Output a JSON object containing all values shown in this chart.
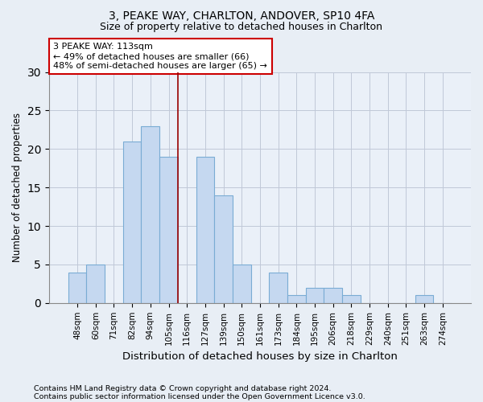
{
  "title1": "3, PEAKE WAY, CHARLTON, ANDOVER, SP10 4FA",
  "title2": "Size of property relative to detached houses in Charlton",
  "xlabel": "Distribution of detached houses by size in Charlton",
  "ylabel": "Number of detached properties",
  "categories": [
    "48sqm",
    "60sqm",
    "71sqm",
    "82sqm",
    "94sqm",
    "105sqm",
    "116sqm",
    "127sqm",
    "139sqm",
    "150sqm",
    "161sqm",
    "173sqm",
    "184sqm",
    "195sqm",
    "206sqm",
    "218sqm",
    "229sqm",
    "240sqm",
    "251sqm",
    "263sqm",
    "274sqm"
  ],
  "values": [
    4,
    5,
    0,
    21,
    23,
    19,
    0,
    19,
    14,
    5,
    0,
    4,
    1,
    2,
    2,
    1,
    0,
    0,
    0,
    1,
    0
  ],
  "bar_color": "#c5d8f0",
  "bar_edge_color": "#7aacd4",
  "vline_x_index": 6,
  "vline_color": "#990000",
  "annotation_text": "3 PEAKE WAY: 113sqm\n← 49% of detached houses are smaller (66)\n48% of semi-detached houses are larger (65) →",
  "annotation_box_color": "#ffffff",
  "annotation_box_edge": "#cc0000",
  "ylim": [
    0,
    30
  ],
  "yticks": [
    0,
    5,
    10,
    15,
    20,
    25,
    30
  ],
  "footer1": "Contains HM Land Registry data © Crown copyright and database right 2024.",
  "footer2": "Contains public sector information licensed under the Open Government Licence v3.0.",
  "bg_color": "#e8eef5",
  "plot_bg_color": "#eaf0f8"
}
